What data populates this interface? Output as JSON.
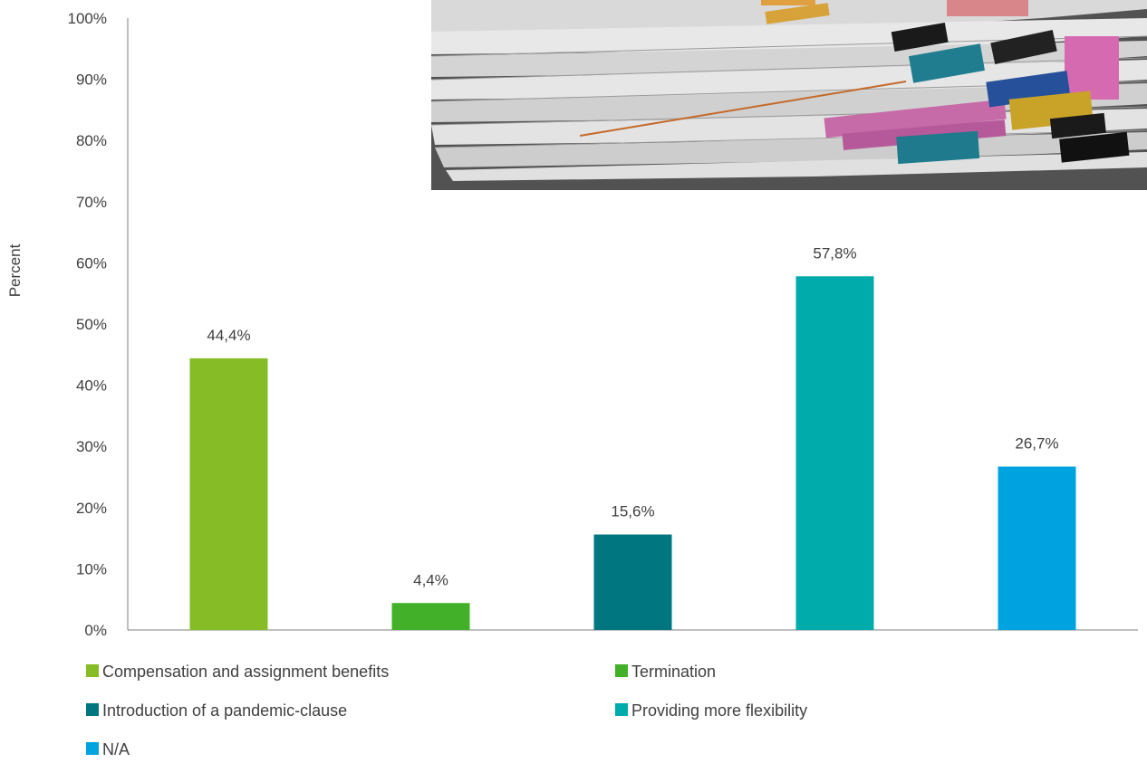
{
  "chart_data": {
    "type": "bar",
    "title": "",
    "xlabel": "",
    "ylabel": "Percent",
    "ylim": [
      0,
      100
    ],
    "yticks": [
      "0%",
      "10%",
      "20%",
      "30%",
      "40%",
      "50%",
      "60%",
      "70%",
      "80%",
      "90%",
      "100%"
    ],
    "grid": false,
    "legend_position": "bottom",
    "categories": [
      "Compensation and assignment benefits",
      "Termination",
      "Introduction of a pandemic-clause",
      "Providing more flexibility",
      "N/A"
    ],
    "values": [
      44.4,
      4.4,
      15.6,
      57.8,
      26.7
    ],
    "data_labels": [
      "44,4%",
      "4,4%",
      "15,6%",
      "57,8%",
      "26,7%"
    ],
    "colors": [
      "#86bc25",
      "#43b02a",
      "#007680",
      "#00abab",
      "#00a3e0"
    ]
  },
  "photo": {
    "icon": "stacked-paper-documents-photo"
  }
}
